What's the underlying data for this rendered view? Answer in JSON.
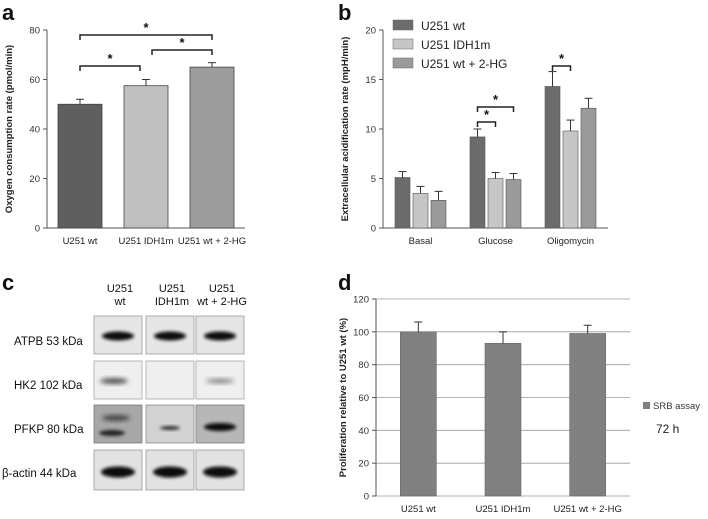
{
  "chart_data": [
    {
      "panel": "a",
      "type": "bar",
      "categories": [
        "U251 wt",
        "U251  IDH1m",
        "U251 wt + 2-HG"
      ],
      "values": [
        50,
        57.5,
        65
      ],
      "errors": [
        2,
        2.5,
        1.8
      ],
      "colors": [
        "#5f5f5f",
        "#c0c0c0",
        "#9d9d9d"
      ],
      "ylabel": "Oxygen consumption rate (pmol/min)",
      "ylim": [
        0,
        80
      ],
      "yticks": [
        0,
        20,
        40,
        60,
        80
      ],
      "significance": [
        {
          "from": 0,
          "to": 1,
          "label": "*"
        },
        {
          "from": 1,
          "to": 2,
          "label": "*"
        },
        {
          "from": 0,
          "to": 2,
          "label": "*"
        }
      ]
    },
    {
      "panel": "b",
      "type": "bar",
      "categories": [
        "Basal",
        "Glucose",
        "Oligomycin"
      ],
      "series": [
        {
          "name": "U251 wt",
          "values": [
            5.1,
            9.2,
            14.3
          ],
          "errors": [
            0.6,
            0.8,
            1.5
          ],
          "color": "#6c6c6c"
        },
        {
          "name": "U251  IDH1m",
          "values": [
            3.5,
            5.0,
            9.8
          ],
          "errors": [
            0.7,
            0.6,
            1.1
          ],
          "color": "#c6c6c6"
        },
        {
          "name": "U251 wt + 2-HG",
          "values": [
            2.8,
            4.9,
            12.1
          ],
          "errors": [
            0.9,
            0.6,
            1.0
          ],
          "color": "#9a9a9a"
        }
      ],
      "ylabel": "Extracellular acidification rate (mpH/min)",
      "ylim": [
        0,
        20
      ],
      "yticks": [
        0,
        5,
        10,
        15,
        20
      ],
      "significance": [
        {
          "category": 1,
          "from": 0,
          "to": 1,
          "label": "*"
        },
        {
          "category": 1,
          "from": 0,
          "to": 2,
          "label": "*"
        },
        {
          "category": 2,
          "from": 0,
          "to": 1,
          "label": "*"
        }
      ]
    },
    {
      "panel": "d",
      "type": "bar",
      "categories": [
        "U251 wt",
        "U251 IDH1m",
        "U251 wt + 2-HG"
      ],
      "values": [
        100,
        93,
        99
      ],
      "errors": [
        6,
        7,
        5
      ],
      "color": "#808080",
      "ylabel": "Proliferation relative to U251 wt (%)",
      "ylim": [
        0,
        120
      ],
      "yticks": [
        0,
        20,
        40,
        60,
        80,
        100,
        120
      ],
      "legend": "SRB assay",
      "annotation": "72 h"
    }
  ],
  "panels": {
    "a": "a",
    "b": "b",
    "c": "c",
    "d": "d"
  },
  "blot": {
    "columns": [
      "U251\nwt",
      "U251\nIDH1m",
      "U251\nwt + 2-HG"
    ],
    "rows": [
      "ATPB 53 kDa",
      "HK2 102 kDa",
      "PFKP 80 kDa",
      "β-actin 44 kDa"
    ]
  }
}
